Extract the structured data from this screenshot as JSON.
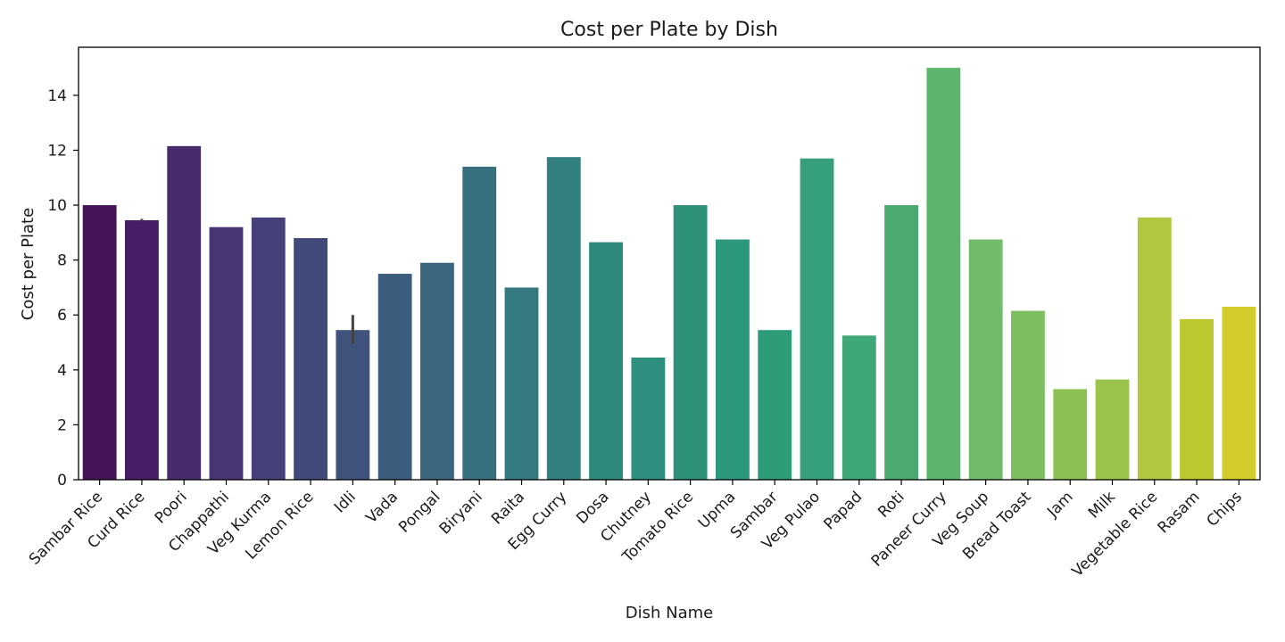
{
  "chart_data": {
    "type": "bar",
    "title": "Cost per Plate by Dish",
    "xlabel": "Dish Name",
    "ylabel": "Cost per Plate",
    "ylim": [
      0,
      15.75
    ],
    "yticks": [
      0,
      2,
      4,
      6,
      8,
      10,
      12,
      14
    ],
    "grid": false,
    "legend": "none",
    "categories": [
      "Sambar Rice",
      "Curd Rice",
      "Poori",
      "Chappathi",
      "Veg Kurma",
      "Lemon Rice",
      "Idli",
      "Vada",
      "Pongal",
      "Biryani",
      "Raita",
      "Egg Curry",
      "Dosa",
      "Chutney",
      "Tomato Rice",
      "Upma",
      "Sambar",
      "Veg Pulao",
      "Papad",
      "Roti",
      "Paneer Curry",
      "Veg Soup",
      "Bread Toast",
      "Jam",
      "Milk",
      "Vegetable Rice",
      "Rasam",
      "Chips"
    ],
    "values": [
      10.0,
      9.45,
      12.15,
      9.2,
      9.55,
      8.8,
      5.45,
      7.5,
      7.9,
      11.4,
      7.0,
      11.75,
      8.65,
      4.45,
      10.0,
      8.75,
      5.45,
      11.7,
      5.25,
      10.0,
      15.0,
      8.75,
      6.15,
      3.3,
      3.65,
      9.55,
      5.85,
      6.3
    ],
    "error_bars": [
      null,
      [
        9.4,
        9.5
      ],
      null,
      null,
      null,
      null,
      [
        4.95,
        6.0
      ],
      null,
      null,
      null,
      null,
      null,
      null,
      null,
      null,
      null,
      null,
      null,
      null,
      null,
      null,
      null,
      null,
      null,
      null,
      null,
      null,
      null
    ],
    "palette": "viridis",
    "colors": [
      "#441457",
      "#471d65",
      "#472b6d",
      "#483573",
      "#454178",
      "#424a7c",
      "#3f537d",
      "#3c5d7d",
      "#3a667e",
      "#38707f",
      "#357a7e",
      "#32817e",
      "#2e8b7b",
      "#2f8f7e",
      "#2e917a",
      "#2c987c",
      "#2e9c78",
      "#36a07a",
      "#3ea677",
      "#4aaa70",
      "#5cb46d",
      "#72bb6c",
      "#7cbe60",
      "#8cc055",
      "#9cc44b",
      "#b0c73f",
      "#bdc72e",
      "#d1cb2c"
    ]
  }
}
